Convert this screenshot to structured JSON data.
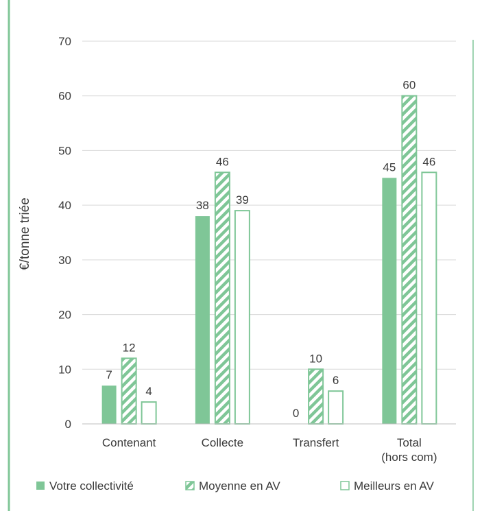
{
  "chart_data": {
    "type": "bar",
    "ylabel": "€/tonne triée",
    "ylim": [
      0,
      70
    ],
    "yticks": [
      "0",
      "10",
      "20",
      "30",
      "40",
      "50",
      "60",
      "70"
    ],
    "grid": true,
    "legend_position": "bottom",
    "categories": [
      [
        "Contenant"
      ],
      [
        "Collecte"
      ],
      [
        "Transfert"
      ],
      [
        "Total",
        "(hors com)"
      ]
    ],
    "series": [
      {
        "name": "Votre collectivité",
        "style": "solid",
        "values": [
          7,
          38,
          0,
          45
        ]
      },
      {
        "name": "Moyenne en AV",
        "style": "hatched",
        "values": [
          12,
          46,
          10,
          60
        ]
      },
      {
        "name": "Meilleurs en AV",
        "style": "outline",
        "values": [
          4,
          39,
          6,
          46
        ]
      }
    ]
  },
  "colors": {
    "accent": "#7fc697",
    "border_green": "#6cbd87",
    "grid": "#d9d9d9",
    "text": "#3a3a3a"
  }
}
